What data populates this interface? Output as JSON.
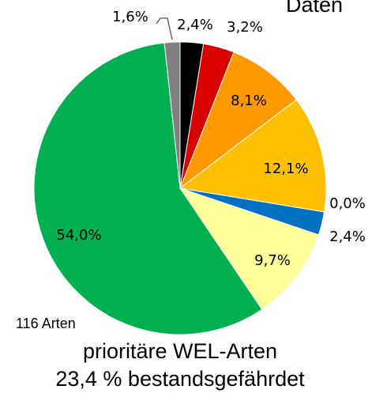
{
  "chart_data": {
    "type": "pie",
    "title": "prioritäre WEL-Arten",
    "subtitle": "23,4 % bestandsgefährdet",
    "annotations": [
      "116 Arten",
      "Daten"
    ],
    "values": [
      2.4,
      3.2,
      8.1,
      12.1,
      0.0,
      2.4,
      9.7,
      54.0,
      1.6
    ],
    "value_labels": [
      "2,4%",
      "3,2%",
      "8,1%",
      "12,1%",
      "0,0%",
      "2,4%",
      "9,7%",
      "54,0%",
      "1,6%"
    ],
    "colors": [
      "#000000",
      "#d90000",
      "#ff9900",
      "#ffc000",
      "#7030a0",
      "#0070c0",
      "#ffff99",
      "#00b050",
      "#808080"
    ]
  }
}
